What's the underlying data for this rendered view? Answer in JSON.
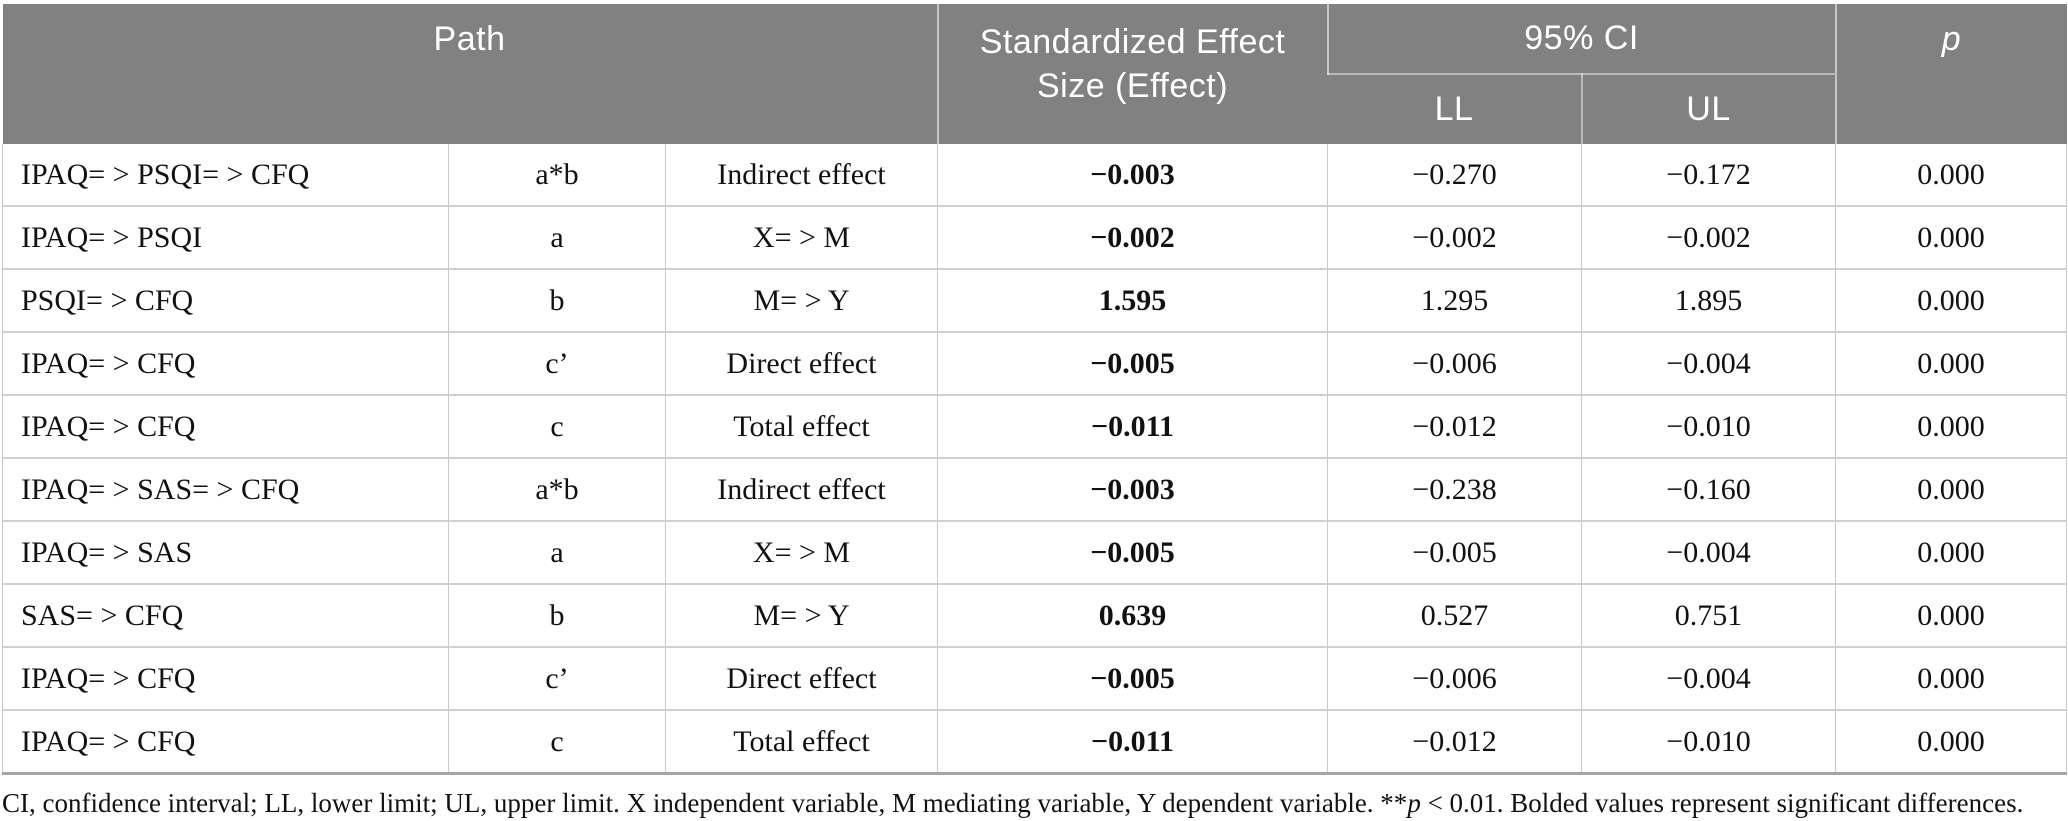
{
  "table": {
    "header": {
      "path_label": "Path",
      "effect_label": "Standardized Effect Size (Effect)",
      "ci_label": "95% CI",
      "ll_label": "LL",
      "ul_label": "UL",
      "p_label": "p"
    },
    "rows": [
      [
        "IPAQ= > PSQI= > CFQ",
        "a*b",
        "Indirect effect",
        "−0.003",
        "−0.270",
        "−0.172",
        "0.000"
      ],
      [
        "IPAQ= > PSQI",
        "a",
        "X= > M",
        "−0.002",
        "−0.002",
        "−0.002",
        "0.000"
      ],
      [
        "PSQI= > CFQ",
        "b",
        "M= > Y",
        "1.595",
        "1.295",
        "1.895",
        "0.000"
      ],
      [
        "IPAQ= > CFQ",
        "c’",
        "Direct effect",
        "−0.005",
        "−0.006",
        "−0.004",
        "0.000"
      ],
      [
        "IPAQ= > CFQ",
        "c",
        "Total effect",
        "−0.011",
        "−0.012",
        "−0.010",
        "0.000"
      ],
      [
        "IPAQ= > SAS= > CFQ",
        "a*b",
        "Indirect effect",
        "−0.003",
        "−0.238",
        "−0.160",
        "0.000"
      ],
      [
        "IPAQ= > SAS",
        "a",
        "X= > M",
        "−0.005",
        "−0.005",
        "−0.004",
        "0.000"
      ],
      [
        "SAS= > CFQ",
        "b",
        "M= > Y",
        "0.639",
        "0.527",
        "0.751",
        "0.000"
      ],
      [
        "IPAQ= > CFQ",
        "c’",
        "Direct effect",
        "−0.005",
        "−0.006",
        "−0.004",
        "0.000"
      ],
      [
        "IPAQ= > CFQ",
        "c",
        "Total effect",
        "−0.011",
        "−0.012",
        "−0.010",
        "0.000"
      ]
    ],
    "footnote": {
      "part1": "CI, confidence interval; LL, lower limit; UL, upper limit. X independent variable, M mediating variable, Y dependent variable. **",
      "italic": "p",
      "part2": " < 0.01. Bolded values represent significant differences."
    }
  },
  "colors": {
    "header_bg": "#818181",
    "header_text": "#ffffff",
    "grid_line": "#c8c8c8",
    "bottom_border": "#a5a5a5",
    "body_text": "#111111"
  }
}
